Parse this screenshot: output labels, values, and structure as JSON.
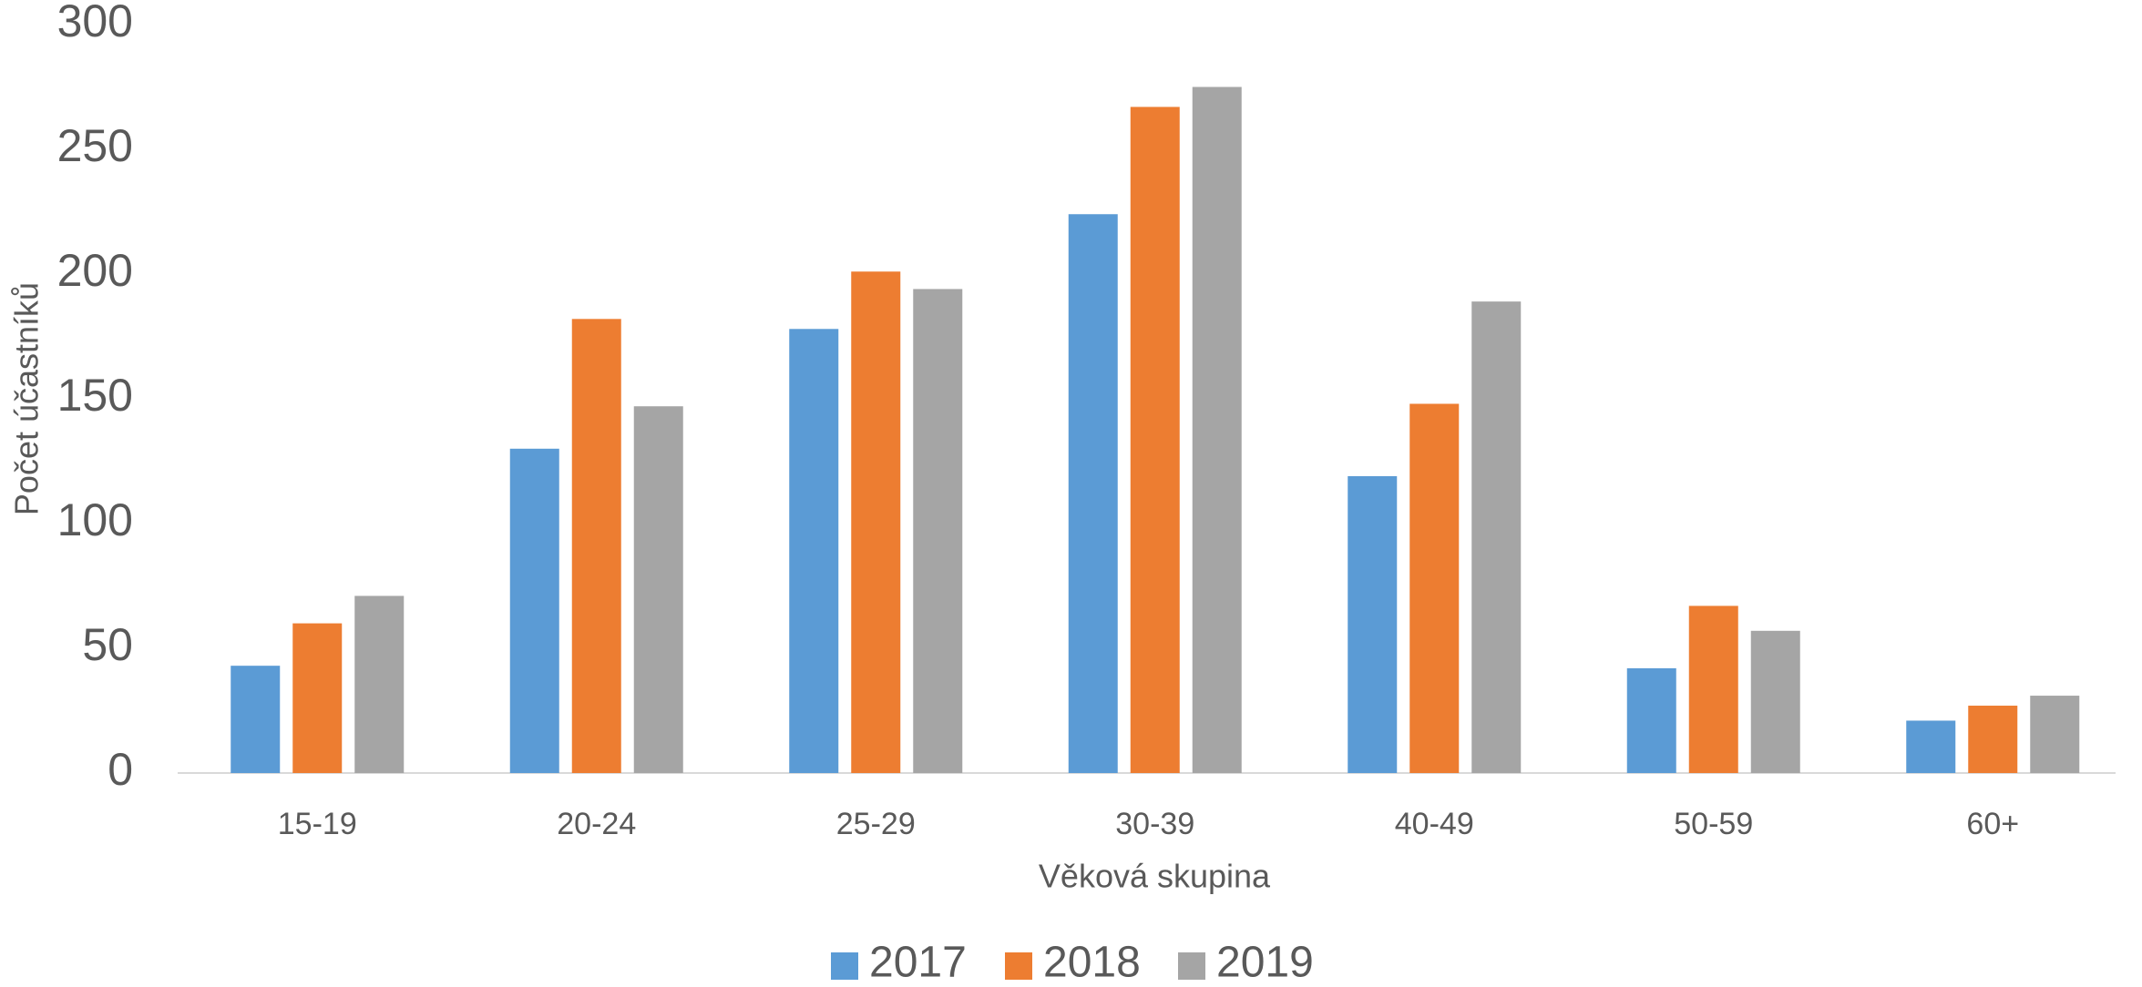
{
  "chart_data": {
    "type": "bar",
    "x_label": "Věková skupina",
    "y_label": "Počet účastníků",
    "categories": [
      "15-19",
      "20-24",
      "25-29",
      "30-39",
      "40-49",
      "50-59",
      "60+"
    ],
    "series": [
      {
        "name": "2017",
        "color": "#5b9bd5",
        "values": [
          43,
          130,
          178,
          224,
          119,
          42,
          21
        ]
      },
      {
        "name": "2018",
        "color": "#ed7d31",
        "values": [
          60,
          182,
          201,
          267,
          148,
          67,
          27
        ]
      },
      {
        "name": "2019",
        "color": "#a5a5a5",
        "values": [
          71,
          147,
          194,
          275,
          189,
          57,
          31
        ]
      }
    ],
    "ylim": [
      0,
      300
    ],
    "yticks": [
      0,
      50,
      100,
      150,
      200,
      250,
      300
    ],
    "grid": false,
    "legend": "bottom"
  }
}
